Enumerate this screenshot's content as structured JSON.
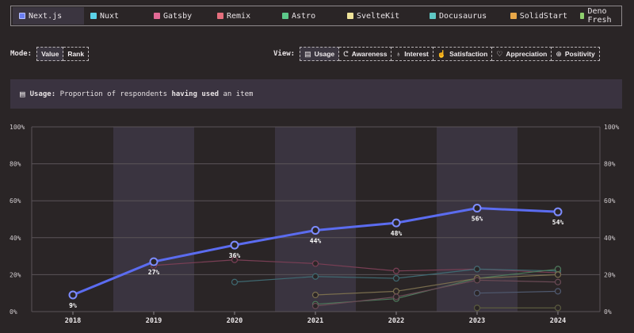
{
  "legend": {
    "items": [
      {
        "label": "Next.js",
        "color": "#6c7ff2",
        "active": true
      },
      {
        "label": "Nuxt",
        "color": "#5bd3e8",
        "active": false
      },
      {
        "label": "Gatsby",
        "color": "#e26a95",
        "active": false
      },
      {
        "label": "Remix",
        "color": "#e56f7d",
        "active": false
      },
      {
        "label": "Astro",
        "color": "#5cc98a",
        "active": false
      },
      {
        "label": "SvelteKit",
        "color": "#f0e49a",
        "active": false
      },
      {
        "label": "Docusaurus",
        "color": "#5fc8c4",
        "active": false
      },
      {
        "label": "SolidStart",
        "color": "#e8a748",
        "active": false
      },
      {
        "label": "Deno Fresh",
        "color": "#8fd06e",
        "active": false
      }
    ]
  },
  "mode": {
    "label": "Mode:",
    "options": [
      {
        "label": "Value",
        "active": true
      },
      {
        "label": "Rank",
        "active": false
      }
    ]
  },
  "view": {
    "label": "View:",
    "options": [
      {
        "label": "Usage",
        "icon": "doc-icon",
        "glyph": "▤",
        "active": true
      },
      {
        "label": "Awareness",
        "icon": "ear-icon",
        "glyph": "ᕦ",
        "active": false
      },
      {
        "label": "Interest",
        "icon": "bulb-icon",
        "glyph": "♁",
        "active": false
      },
      {
        "label": "Satisfaction",
        "icon": "thumbs-up-icon",
        "glyph": "☝",
        "active": false
      },
      {
        "label": "Appreciation",
        "icon": "heart-icon",
        "glyph": "♡",
        "active": false
      },
      {
        "label": "Positivity",
        "icon": "plus-circle-icon",
        "glyph": "⊕",
        "active": false
      }
    ]
  },
  "banner": {
    "label": "Usage:",
    "text_pre": "Proportion of respondents",
    "text_bold": "having used",
    "text_post": "an item"
  },
  "chart_data": {
    "type": "line",
    "x": [
      "2018",
      "2019",
      "2020",
      "2021",
      "2022",
      "2023",
      "2024"
    ],
    "ylim": [
      0,
      100
    ],
    "yticks": [
      "0%",
      "20%",
      "40%",
      "60%",
      "80%",
      "100%"
    ],
    "ytick_values": [
      0,
      20,
      40,
      60,
      80,
      100
    ],
    "grid": true,
    "highlight": {
      "color": "#5b6cf0",
      "values": [
        9,
        27,
        36,
        44,
        48,
        56,
        54
      ],
      "labels": [
        "9%",
        "27%",
        "36%",
        "44%",
        "48%",
        "56%",
        "54%"
      ]
    },
    "background_series": [
      {
        "color": "#7a3f55",
        "values": [
          null,
          25,
          28,
          26,
          22,
          23,
          21
        ]
      },
      {
        "color": "#3f6a72",
        "values": [
          null,
          null,
          16,
          19,
          18,
          23,
          22
        ]
      },
      {
        "color": "#4d7a5c",
        "values": [
          null,
          null,
          null,
          4,
          7,
          18,
          23
        ]
      },
      {
        "color": "#7a6e4e",
        "values": [
          null,
          null,
          null,
          9,
          11,
          18,
          20
        ]
      },
      {
        "color": "#6a4a55",
        "values": [
          null,
          null,
          null,
          3,
          8,
          17,
          16
        ]
      },
      {
        "color": "#505a70",
        "values": [
          null,
          null,
          null,
          null,
          null,
          10,
          11
        ]
      },
      {
        "color": "#5a5a3e",
        "values": [
          null,
          null,
          null,
          null,
          null,
          2,
          2
        ]
      }
    ]
  }
}
